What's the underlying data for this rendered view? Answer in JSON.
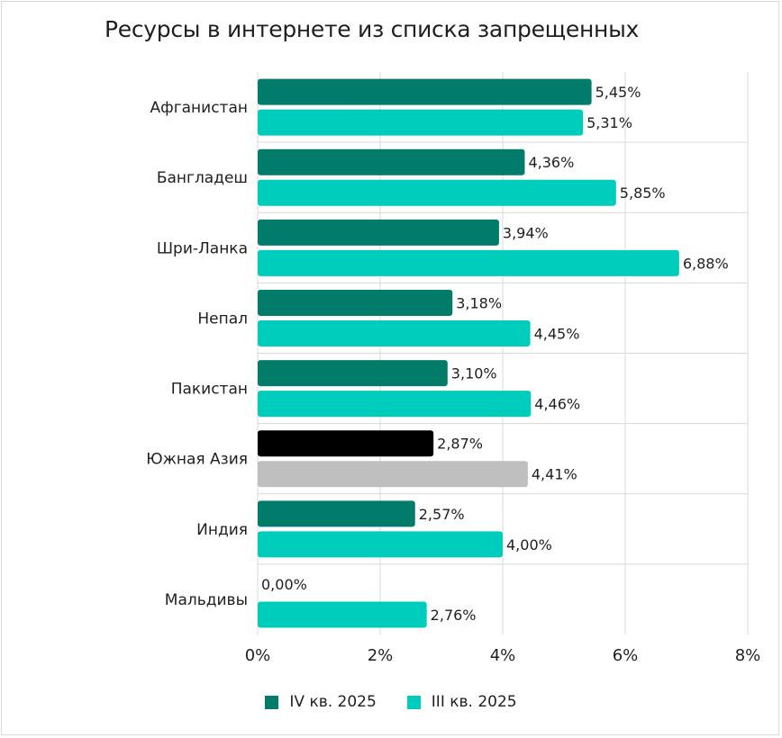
{
  "chart_data": {
    "type": "bar",
    "orientation": "horizontal",
    "title": "Ресурсы в интернете из списка запрещенных",
    "categories": [
      "Афганистан",
      "Бангладеш",
      "Шри-Ланка",
      "Непал",
      "Пакистан",
      "Южная Азия",
      "Индия",
      "Мальдивы"
    ],
    "series": [
      {
        "name": "IV кв. 2025",
        "color": "#027c6a",
        "highlight_color": "#000000",
        "values": [
          5.45,
          4.36,
          3.94,
          3.18,
          3.1,
          2.87,
          2.57,
          0.0
        ],
        "labels": [
          "5,45%",
          "4,36%",
          "3,94%",
          "3,18%",
          "3,10%",
          "2,87%",
          "2,57%",
          "0,00%"
        ]
      },
      {
        "name": "III кв. 2025",
        "color": "#00ccbc",
        "highlight_color": "#bfbfbf",
        "values": [
          5.31,
          5.85,
          6.88,
          4.45,
          4.46,
          4.41,
          4.0,
          2.76
        ],
        "labels": [
          "5,31%",
          "5,85%",
          "6,88%",
          "4,45%",
          "4,46%",
          "4,41%",
          "4,00%",
          "2,76%"
        ]
      }
    ],
    "highlight_category": "Южная Азия",
    "xlim": [
      0,
      8
    ],
    "xticks": [
      "0%",
      "2%",
      "4%",
      "6%",
      "8%"
    ],
    "xtick_values": [
      0,
      2,
      4,
      6,
      8
    ],
    "grid": true,
    "legend_position": "bottom-center"
  }
}
